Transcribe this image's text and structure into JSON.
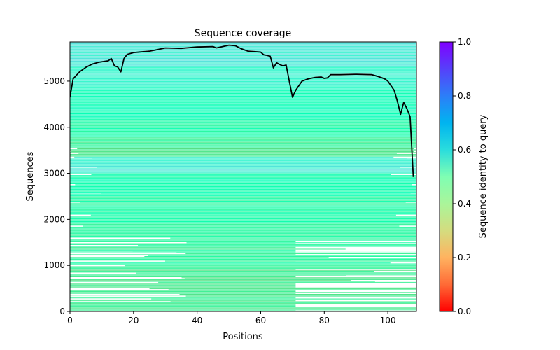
{
  "chart_data": {
    "type": "heatmap",
    "title": "Sequence coverage",
    "xlabel": "Positions",
    "ylabel": "Sequences",
    "xlim": [
      0,
      109
    ],
    "ylim": [
      0,
      5850
    ],
    "x_ticks": [
      0,
      20,
      40,
      60,
      80,
      100
    ],
    "y_ticks": [
      0,
      1000,
      2000,
      3000,
      4000,
      5000
    ],
    "colorbar": {
      "label": "Sequence identity to query",
      "range": [
        0,
        1
      ],
      "ticks": [
        "0.0",
        "0.2",
        "0.4",
        "0.6",
        "0.8",
        "1.0"
      ],
      "colormap": "rainbow_r"
    },
    "identity_bands": [
      {
        "from": 0,
        "to": 350,
        "identity": 0.38
      },
      {
        "from": 350,
        "to": 900,
        "identity": 0.37
      },
      {
        "from": 900,
        "to": 1500,
        "identity": 0.42
      },
      {
        "from": 1500,
        "to": 2500,
        "identity": 0.44
      },
      {
        "from": 2500,
        "to": 3000,
        "identity": 0.48
      },
      {
        "from": 3000,
        "to": 3350,
        "identity": 0.62
      },
      {
        "from": 3350,
        "to": 3550,
        "identity": 0.36
      },
      {
        "from": 3550,
        "to": 3800,
        "identity": 0.4
      },
      {
        "from": 3800,
        "to": 4200,
        "identity": 0.46
      },
      {
        "from": 4200,
        "to": 4800,
        "identity": 0.52
      },
      {
        "from": 4800,
        "to": 5300,
        "identity": 0.58
      },
      {
        "from": 5300,
        "to": 5850,
        "identity": 0.63
      }
    ],
    "coverage_line": {
      "color": "#000000",
      "x": [
        0,
        1,
        3,
        5,
        7,
        9,
        11,
        12,
        13,
        14,
        15,
        16,
        17,
        18,
        20,
        25,
        30,
        35,
        40,
        45,
        46,
        48,
        50,
        52,
        54,
        56,
        58,
        60,
        61,
        62,
        63,
        64,
        65,
        66,
        67,
        68,
        69,
        70,
        71,
        73,
        75,
        77,
        79,
        80,
        81,
        82,
        85,
        90,
        95,
        97,
        99,
        100,
        101,
        102,
        103,
        104,
        105,
        106,
        107,
        108
      ],
      "y": [
        4650,
        5050,
        5200,
        5300,
        5370,
        5410,
        5430,
        5440,
        5490,
        5330,
        5310,
        5200,
        5490,
        5580,
        5620,
        5650,
        5720,
        5710,
        5740,
        5750,
        5720,
        5750,
        5780,
        5770,
        5700,
        5650,
        5640,
        5630,
        5570,
        5560,
        5540,
        5290,
        5400,
        5360,
        5330,
        5350,
        5000,
        4650,
        4800,
        5000,
        5050,
        5080,
        5090,
        5060,
        5070,
        5140,
        5140,
        5150,
        5140,
        5100,
        5050,
        5000,
        4900,
        4800,
        4560,
        4280,
        4540,
        4400,
        4230,
        2920
      ]
    }
  }
}
